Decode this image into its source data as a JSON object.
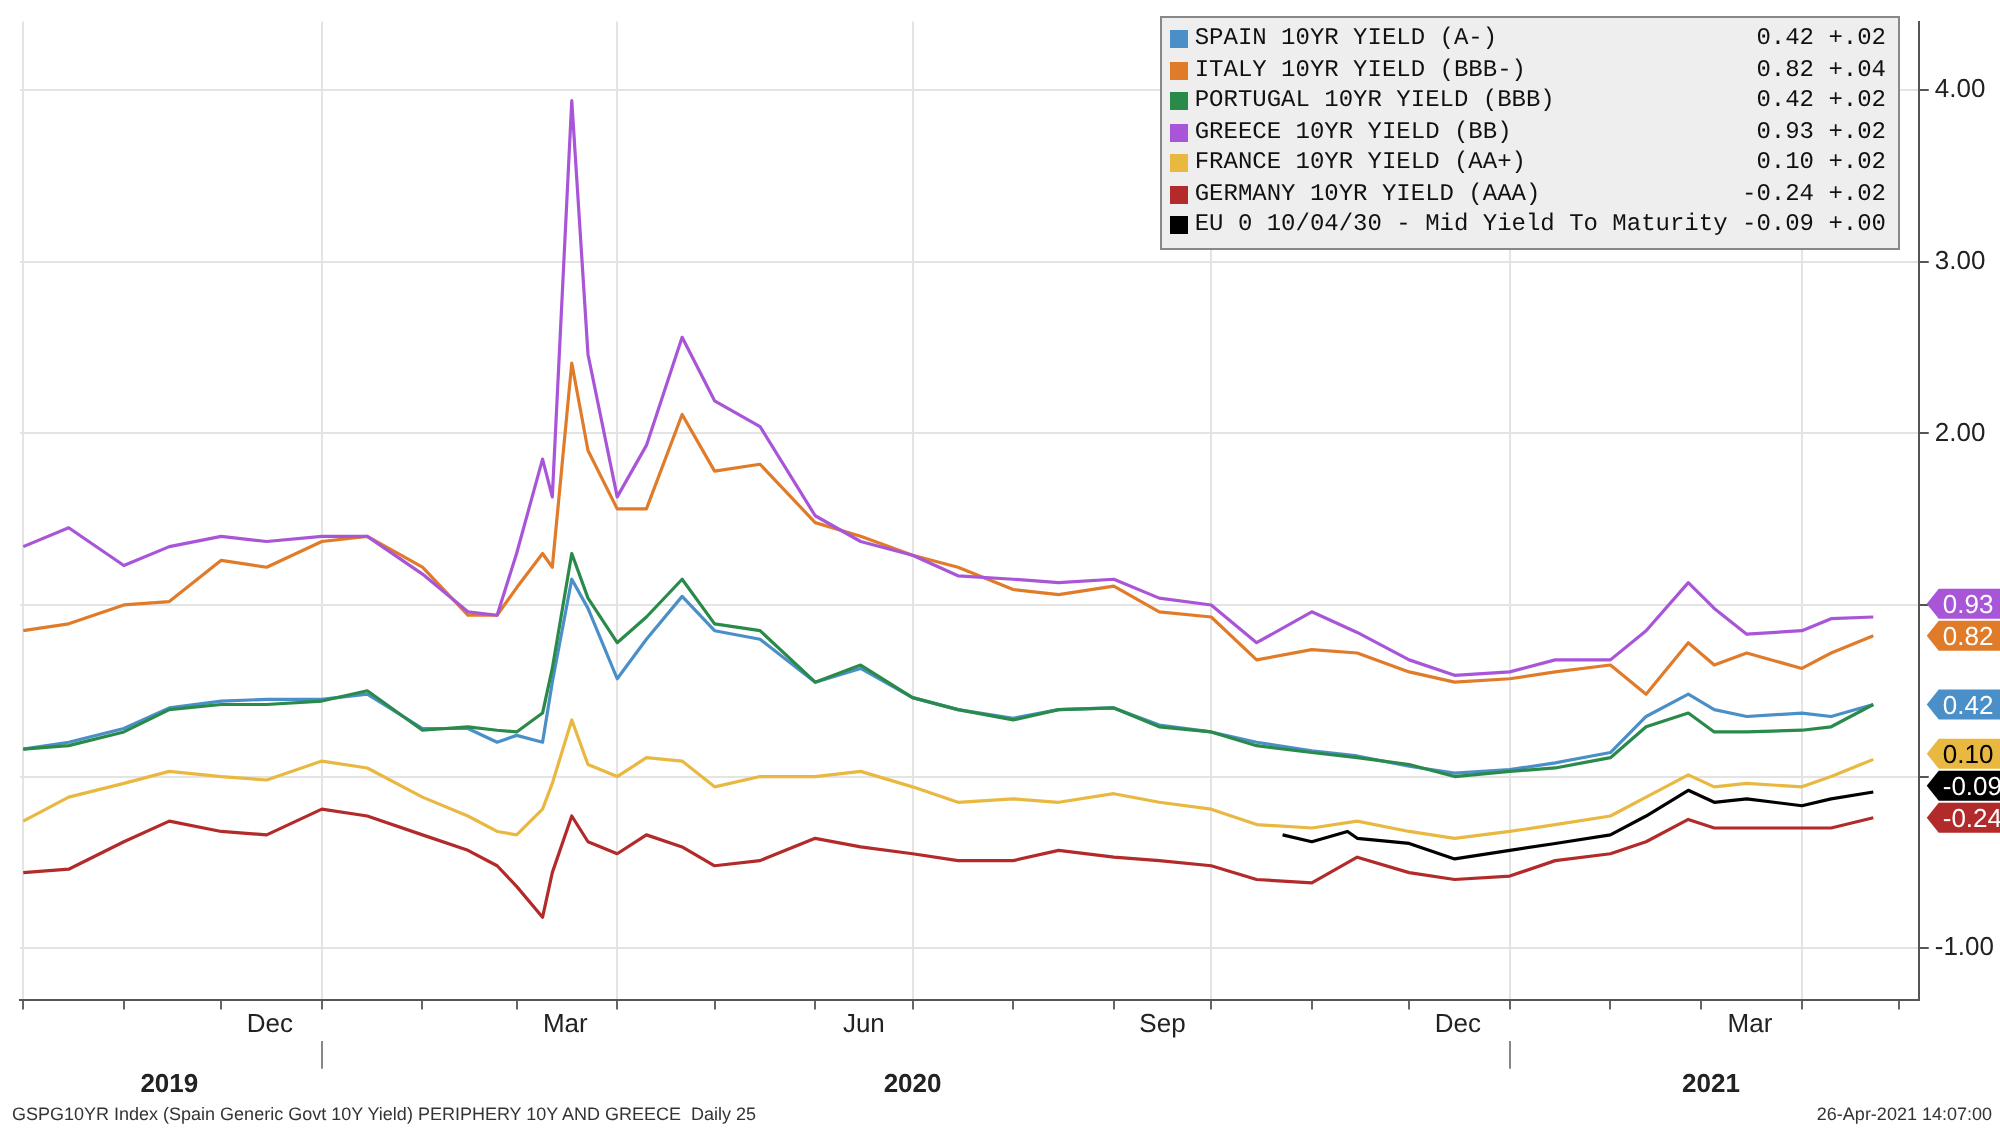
{
  "chart_data": {
    "type": "line",
    "x": [
      "2019-10-01",
      "2019-10-15",
      "2019-11-01",
      "2019-11-15",
      "2019-12-01",
      "2019-12-15",
      "2020-01-01",
      "2020-01-15",
      "2020-02-01",
      "2020-02-15",
      "2020-02-24",
      "2020-03-01",
      "2020-03-09",
      "2020-03-12",
      "2020-03-18",
      "2020-03-23",
      "2020-04-01",
      "2020-04-10",
      "2020-04-21",
      "2020-05-01",
      "2020-05-15",
      "2020-06-01",
      "2020-06-15",
      "2020-07-01",
      "2020-07-15",
      "2020-08-01",
      "2020-08-15",
      "2020-09-01",
      "2020-09-15",
      "2020-10-01",
      "2020-10-15",
      "2020-11-01",
      "2020-11-15",
      "2020-12-01",
      "2020-12-15",
      "2021-01-01",
      "2021-01-15",
      "2021-02-01",
      "2021-02-12",
      "2021-02-25",
      "2021-03-05",
      "2021-03-15",
      "2021-04-01",
      "2021-04-10",
      "2021-04-23"
    ],
    "series": [
      {
        "name": "SPAIN 10YR YIELD (A-) 0.42 +.02",
        "color": "#4a8fc7",
        "values": [
          0.16,
          0.2,
          0.28,
          0.4,
          0.44,
          0.45,
          0.45,
          0.48,
          0.28,
          0.28,
          0.2,
          0.24,
          0.2,
          0.55,
          1.15,
          0.98,
          0.57,
          0.8,
          1.05,
          0.85,
          0.8,
          0.55,
          0.63,
          0.46,
          0.39,
          0.34,
          0.39,
          0.4,
          0.3,
          0.26,
          0.2,
          0.15,
          0.12,
          0.06,
          0.02,
          0.04,
          0.08,
          0.14,
          0.35,
          0.48,
          0.39,
          0.35,
          0.37,
          0.35,
          0.42
        ]
      },
      {
        "name": "ITALY 10YR YIELD (BBB-) 0.82 +.04",
        "color": "#e07b2a",
        "values": [
          0.85,
          0.89,
          1.0,
          1.02,
          1.26,
          1.22,
          1.37,
          1.4,
          1.22,
          0.94,
          0.94,
          1.1,
          1.3,
          1.22,
          2.41,
          1.9,
          1.56,
          1.56,
          2.11,
          1.78,
          1.82,
          1.48,
          1.4,
          1.29,
          1.22,
          1.09,
          1.06,
          1.11,
          0.96,
          0.93,
          0.68,
          0.74,
          0.72,
          0.61,
          0.55,
          0.57,
          0.61,
          0.65,
          0.48,
          0.78,
          0.65,
          0.72,
          0.63,
          0.72,
          0.82
        ]
      },
      {
        "name": "PORTUGAL 10YR YIELD (BBB) 0.42 +.02",
        "color": "#2a8a4a",
        "values": [
          0.16,
          0.18,
          0.26,
          0.39,
          0.42,
          0.42,
          0.44,
          0.5,
          0.27,
          0.29,
          0.27,
          0.26,
          0.37,
          0.63,
          1.3,
          1.04,
          0.78,
          0.93,
          1.15,
          0.89,
          0.85,
          0.55,
          0.65,
          0.46,
          0.39,
          0.33,
          0.39,
          0.4,
          0.29,
          0.26,
          0.18,
          0.14,
          0.11,
          0.07,
          0.0,
          0.03,
          0.05,
          0.11,
          0.29,
          0.37,
          0.26,
          0.26,
          0.27,
          0.29,
          0.42
        ]
      },
      {
        "name": "GREECE 10YR YIELD (BB) 0.93 +.02",
        "color": "#a855d8",
        "values": [
          1.34,
          1.45,
          1.23,
          1.34,
          1.4,
          1.37,
          1.4,
          1.4,
          1.18,
          0.96,
          0.94,
          1.3,
          1.85,
          1.63,
          3.94,
          2.46,
          1.63,
          1.93,
          2.56,
          2.19,
          2.04,
          1.52,
          1.37,
          1.29,
          1.17,
          1.15,
          1.13,
          1.15,
          1.04,
          1.0,
          0.78,
          0.96,
          0.84,
          0.68,
          0.59,
          0.61,
          0.68,
          0.68,
          0.85,
          1.13,
          0.98,
          0.83,
          0.85,
          0.92,
          0.93
        ]
      },
      {
        "name": "FRANCE 10YR YIELD (AA+) 0.10 +.02",
        "color": "#e8b840",
        "values": [
          -0.26,
          -0.12,
          -0.04,
          0.03,
          0.0,
          -0.02,
          0.09,
          0.05,
          -0.12,
          -0.23,
          -0.32,
          -0.34,
          -0.19,
          -0.04,
          0.33,
          0.07,
          0.0,
          0.11,
          0.09,
          -0.06,
          0.0,
          0.0,
          0.03,
          -0.06,
          -0.15,
          -0.13,
          -0.15,
          -0.1,
          -0.15,
          -0.19,
          -0.28,
          -0.3,
          -0.26,
          -0.32,
          -0.36,
          -0.32,
          -0.28,
          -0.23,
          -0.12,
          0.01,
          -0.06,
          -0.04,
          -0.06,
          0.0,
          0.1
        ]
      },
      {
        "name": "GERMANY 10YR YIELD (AAA) -0.24 +.02",
        "color": "#b22a2a",
        "values": [
          -0.56,
          -0.54,
          -0.38,
          -0.26,
          -0.32,
          -0.34,
          -0.19,
          -0.23,
          -0.34,
          -0.43,
          -0.52,
          -0.64,
          -0.82,
          -0.56,
          -0.23,
          -0.38,
          -0.45,
          -0.34,
          -0.41,
          -0.52,
          -0.49,
          -0.36,
          -0.41,
          -0.45,
          -0.49,
          -0.49,
          -0.43,
          -0.47,
          -0.49,
          -0.52,
          -0.6,
          -0.62,
          -0.47,
          -0.56,
          -0.6,
          -0.58,
          -0.49,
          -0.45,
          -0.38,
          -0.25,
          -0.3,
          -0.3,
          -0.3,
          -0.3,
          -0.24
        ]
      },
      {
        "name": "EU 0 10/04/30 - Mid Yield To Maturity -0.09 +.00",
        "color": "#000000",
        "x": [
          "2020-10-23",
          "2020-11-01",
          "2020-11-12",
          "2020-11-15",
          "2020-12-01",
          "2020-12-15",
          "2021-01-01",
          "2021-01-15",
          "2021-02-01",
          "2021-02-12",
          "2021-02-25",
          "2021-03-05",
          "2021-03-15",
          "2021-04-01",
          "2021-04-10",
          "2021-04-23"
        ],
        "values": [
          -0.34,
          -0.38,
          -0.32,
          -0.36,
          -0.39,
          -0.48,
          -0.43,
          -0.39,
          -0.34,
          -0.23,
          -0.08,
          -0.15,
          -0.13,
          -0.17,
          -0.13,
          -0.09
        ]
      }
    ],
    "xlim": [
      "2019-09-30",
      "2021-05-07"
    ],
    "xticks": [
      {
        "value": "2019-10-01",
        "label": null
      },
      {
        "value": "2019-11-01",
        "label": null
      },
      {
        "value": "2019-12-01",
        "label": null
      },
      {
        "value": "2019-12-16",
        "label": "Dec"
      },
      {
        "value": "2020-01-01",
        "label": null
      },
      {
        "value": "2020-02-01",
        "label": null
      },
      {
        "value": "2020-03-01",
        "label": null
      },
      {
        "value": "2020-03-16",
        "label": "Mar"
      },
      {
        "value": "2020-04-01",
        "label": null
      },
      {
        "value": "2020-05-01",
        "label": null
      },
      {
        "value": "2020-06-01",
        "label": null
      },
      {
        "value": "2020-06-16",
        "label": "Jun"
      },
      {
        "value": "2020-07-01",
        "label": null
      },
      {
        "value": "2020-08-01",
        "label": null
      },
      {
        "value": "2020-09-01",
        "label": null
      },
      {
        "value": "2020-09-16",
        "label": "Sep"
      },
      {
        "value": "2020-10-01",
        "label": null
      },
      {
        "value": "2020-11-01",
        "label": null
      },
      {
        "value": "2020-12-01",
        "label": null
      },
      {
        "value": "2020-12-16",
        "label": "Dec"
      },
      {
        "value": "2021-01-01",
        "label": null
      },
      {
        "value": "2021-02-01",
        "label": null
      },
      {
        "value": "2021-03-01",
        "label": null
      },
      {
        "value": "2021-03-16",
        "label": "Mar"
      },
      {
        "value": "2021-04-01",
        "label": null
      },
      {
        "value": "2021-05-01",
        "label": null
      }
    ],
    "x2lim": [
      "2019-09-30",
      "2021-05-07"
    ],
    "x2ticks": [
      {
        "value": "2019-11-15",
        "label": "2019"
      },
      {
        "value": "2020-01-01",
        "label": null
      },
      {
        "value": "2020-07-01",
        "label": "2020"
      },
      {
        "value": "2021-01-01",
        "label": null
      },
      {
        "value": "2021-03-04",
        "label": "2021"
      }
    ],
    "ylim": [
      -1.3,
      4.4
    ],
    "yticks": [
      {
        "value": -1,
        "label": "-1.00"
      },
      {
        "value": 0,
        "label": null
      },
      {
        "value": 1,
        "label": null
      },
      {
        "value": 2,
        "label": "2.00"
      },
      {
        "value": 3,
        "label": "3.00"
      },
      {
        "value": 4,
        "label": "4.00"
      }
    ],
    "grid": true,
    "legend": "top right",
    "annotations": [
      "GSPG10YR Index (Spain Generic Govt 10Y Yield) PERIPHERY 10Y AND GREECE  Daily 25",
      "26-Apr-2021 14:07:00",
      {
        "text": "0.93",
        "x": "2021-04-23",
        "y": 0.93
      },
      {
        "text": "0.82",
        "x": "2021-04-23",
        "y": 0.82
      },
      {
        "text": "0.42",
        "x": "2021-04-23",
        "y": 0.42
      },
      {
        "text": "0.10",
        "x": "2021-04-23",
        "y": 0.1
      },
      {
        "text": "-0.09",
        "x": "2021-04-23",
        "y": -0.09
      },
      {
        "text": "-0.24",
        "x": "2021-04-23",
        "y": -0.24
      }
    ]
  }
}
